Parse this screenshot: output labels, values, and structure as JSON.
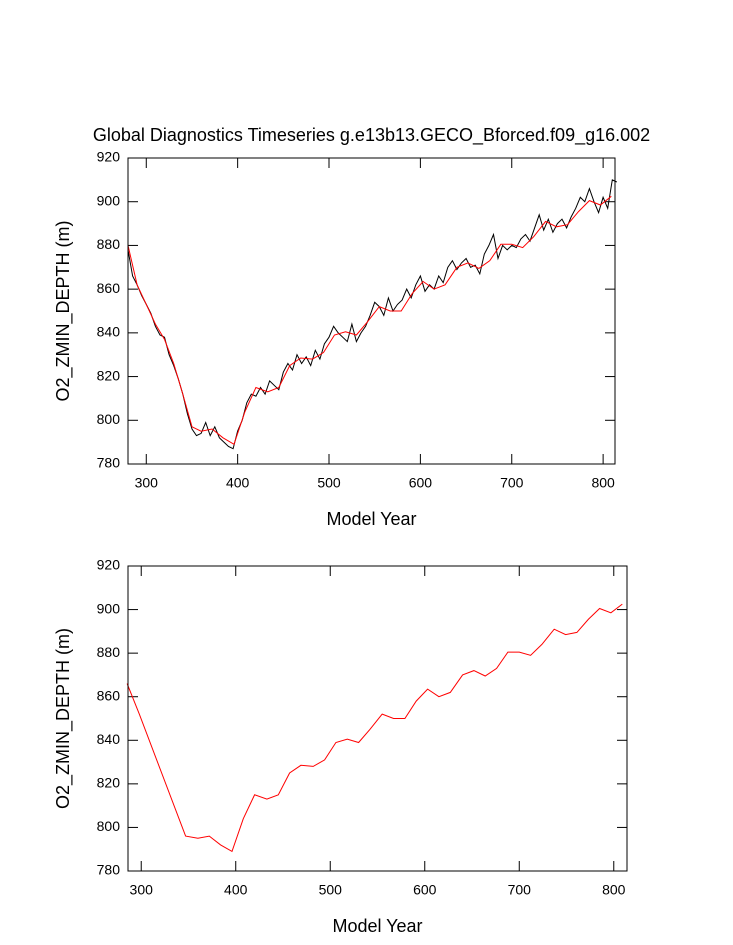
{
  "chart_data": [
    {
      "type": "line",
      "title": "Global Diagnostics Timeseries g.e13b13.GECO_Bforced.f09_g16.002",
      "x_label": "Model Year",
      "y_label": "O2_ZMIN_DEPTH (m)",
      "xlim": [
        280,
        813
      ],
      "ylim": [
        780,
        920
      ],
      "xticks": [
        300,
        400,
        500,
        600,
        700,
        800
      ],
      "yticks": [
        780,
        800,
        820,
        840,
        860,
        880,
        900,
        920
      ],
      "series": [
        {
          "color": "#000000",
          "x": [
            280,
            285,
            290,
            295,
            300,
            305,
            310,
            315,
            320,
            325,
            330,
            335,
            340,
            345,
            350,
            355,
            360,
            365,
            370,
            375,
            380,
            385,
            390,
            395,
            400,
            405,
            410,
            415,
            420,
            425,
            430,
            435,
            440,
            445,
            450,
            455,
            460,
            465,
            470,
            475,
            480,
            485,
            490,
            495,
            500,
            505,
            510,
            515,
            520,
            525,
            530,
            535,
            540,
            545,
            550,
            555,
            560,
            565,
            570,
            575,
            580,
            585,
            590,
            595,
            600,
            605,
            610,
            615,
            620,
            625,
            630,
            635,
            640,
            645,
            650,
            655,
            660,
            665,
            670,
            675,
            680,
            685,
            690,
            695,
            700,
            705,
            710,
            715,
            720,
            725,
            730,
            735,
            740,
            745,
            750,
            755,
            760,
            765,
            770,
            775,
            780,
            785,
            790,
            795,
            800,
            805,
            810,
            815
          ],
          "values": [
            878,
            866,
            862,
            857,
            853,
            849,
            843,
            839,
            838,
            830,
            825,
            819,
            812,
            803,
            796,
            793,
            794,
            799,
            793,
            797,
            792,
            790,
            788,
            787,
            795,
            800,
            808,
            812,
            811,
            815,
            812,
            818,
            816,
            814,
            822,
            826,
            823,
            830,
            826,
            829,
            825,
            832,
            828,
            835,
            838,
            843,
            840,
            838,
            836,
            844,
            836,
            840,
            843,
            848,
            854,
            852,
            848,
            856,
            850,
            853,
            855,
            860,
            856,
            862,
            866,
            859,
            862,
            860,
            866,
            863,
            870,
            873,
            869,
            872,
            874,
            870,
            871,
            867,
            876,
            880,
            885,
            874,
            880,
            878,
            880,
            879,
            883,
            885,
            882,
            888,
            894,
            887,
            892,
            886,
            890,
            892,
            888,
            893,
            897,
            902,
            900,
            906,
            900,
            895,
            902,
            897,
            910,
            909
          ]
        },
        {
          "color": "#ff0000",
          "x": [
            280,
            290,
            300,
            310,
            320,
            330,
            340,
            350,
            360,
            372,
            384,
            396,
            408,
            420,
            433,
            445,
            457,
            469,
            482,
            494,
            506,
            518,
            530,
            542,
            555,
            567,
            579,
            591,
            603,
            615,
            627,
            640,
            652,
            664,
            676,
            688,
            700,
            712,
            724,
            737,
            749,
            761,
            773,
            785,
            797,
            809
          ],
          "values": [
            880,
            862,
            853,
            844,
            837,
            826,
            812,
            797,
            795,
            796,
            792,
            789,
            804,
            815,
            813,
            815,
            825,
            828.5,
            828,
            831,
            839,
            840.5,
            839,
            845,
            852,
            850,
            850,
            858,
            863.5,
            860,
            862,
            870,
            872,
            869.5,
            873,
            880.5,
            880.5,
            879,
            884,
            891,
            888.5,
            889.5,
            895.5,
            900.5,
            898.5,
            902.5
          ]
        }
      ]
    },
    {
      "type": "line",
      "x_label": "Model Year",
      "y_label": "O2_ZMIN_DEPTH (m)",
      "xlim": [
        286,
        814
      ],
      "ylim": [
        780,
        920
      ],
      "xticks": [
        300,
        400,
        500,
        600,
        700,
        800
      ],
      "yticks": [
        780,
        800,
        820,
        840,
        860,
        880,
        900,
        920
      ],
      "series": [
        {
          "color": "#ff0000",
          "x": [
            285,
            298,
            347,
            360,
            372,
            384,
            396,
            408,
            420,
            433,
            445,
            457,
            469,
            482,
            494,
            506,
            518,
            530,
            542,
            555,
            567,
            579,
            591,
            603,
            615,
            627,
            640,
            652,
            664,
            676,
            688,
            700,
            712,
            724,
            737,
            749,
            761,
            773,
            785,
            797,
            809
          ],
          "values": [
            866,
            852,
            796,
            795,
            796,
            792,
            789,
            804,
            815,
            813,
            815,
            825,
            828.5,
            828,
            831,
            839,
            840.5,
            839,
            845,
            852,
            850,
            850,
            858,
            863.5,
            860,
            862,
            870,
            872,
            869.5,
            873,
            880.5,
            880.5,
            879,
            884,
            891,
            888.5,
            889.5,
            895.5,
            900.5,
            898.5,
            902.5
          ]
        }
      ]
    }
  ]
}
